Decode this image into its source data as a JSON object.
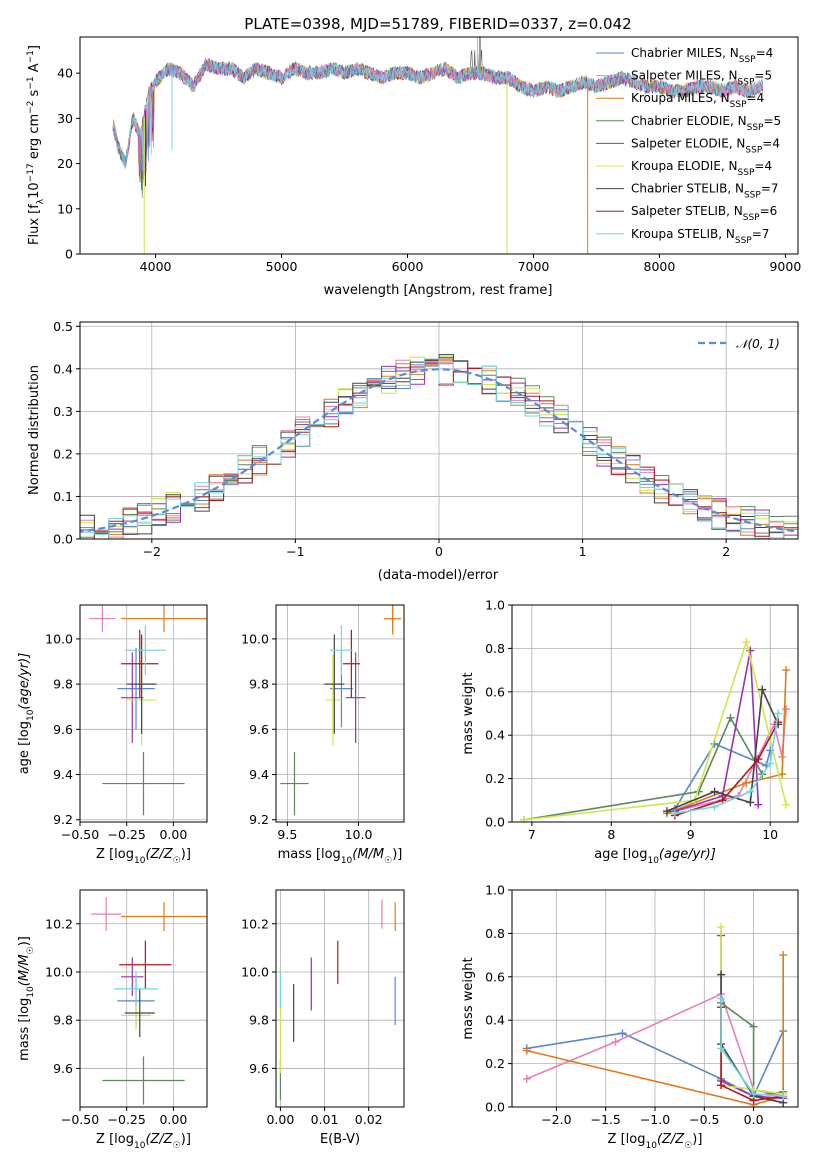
{
  "page_title": "PLATE=0398, MJD=51789, FIBERID=0337, z=0.042",
  "colors": {
    "Chabrier MILES": "#5b86c9",
    "Salpeter MILES": "#e77fb8",
    "Kroupa MILES": "#e07b1a",
    "Chabrier ELODIE": "#5a8a5a",
    "Salpeter ELODIE": "#9a2fb0",
    "Kroupa ELODIE": "#cde84a",
    "Chabrier STELIB": "#444444",
    "Salpeter STELIB": "#b3161e",
    "Kroupa STELIB": "#6fd6e2",
    "normal": "#5b8bd6"
  },
  "models": [
    {
      "key": "Chabrier MILES",
      "label": "Chabrier MILES, N",
      "sub": "SSP",
      "suffix": "=4"
    },
    {
      "key": "Salpeter MILES",
      "label": "Salpeter MILES, N",
      "sub": "SSP",
      "suffix": "=5"
    },
    {
      "key": "Kroupa MILES",
      "label": "Kroupa MILES, N",
      "sub": "SSP",
      "suffix": "=4"
    },
    {
      "key": "Chabrier ELODIE",
      "label": "Chabrier ELODIE, N",
      "sub": "SSP",
      "suffix": "=5"
    },
    {
      "key": "Salpeter ELODIE",
      "label": "Salpeter ELODIE, N",
      "sub": "SSP",
      "suffix": "=4"
    },
    {
      "key": "Kroupa ELODIE",
      "label": "Kroupa ELODIE, N",
      "sub": "SSP",
      "suffix": "=4"
    },
    {
      "key": "Chabrier STELIB",
      "label": "Chabrier STELIB, N",
      "sub": "SSP",
      "suffix": "=7"
    },
    {
      "key": "Salpeter STELIB",
      "label": "Salpeter STELIB, N",
      "sub": "SSP",
      "suffix": "=6"
    },
    {
      "key": "Kroupa STELIB",
      "label": "Kroupa STELIB, N",
      "sub": "SSP",
      "suffix": "=7"
    }
  ],
  "chart_data": [
    {
      "id": "spectrum",
      "type": "line",
      "title": "PLATE=0398, MJD=51789, FIBERID=0337, z=0.042",
      "xlabel": "wavelength [Angstrom, rest frame]",
      "ylabel": "Flux [f",
      "ylabel_parts": {
        "a": "Flux [f",
        "b": "λ",
        "c": "10",
        "d": "−17",
        "e": " erg cm",
        "f": "−2",
        "g": " s",
        "h": "−1",
        "i": " A",
        "j": "−1",
        "k": "]"
      },
      "xlim": [
        3400,
        9100
      ],
      "ylim": [
        0,
        48
      ],
      "xticks": [
        4000,
        5000,
        6000,
        7000,
        8000,
        9000
      ],
      "yticks": [
        0,
        10,
        20,
        30,
        40
      ],
      "grid": false,
      "legend_placement": "right",
      "continuum_points": [
        [
          3660,
          29
        ],
        [
          3700,
          24
        ],
        [
          3760,
          20
        ],
        [
          3820,
          30
        ],
        [
          3880,
          26
        ],
        [
          3950,
          36
        ],
        [
          4000,
          38
        ],
        [
          4100,
          41
        ],
        [
          4200,
          40
        ],
        [
          4300,
          37
        ],
        [
          4400,
          42
        ],
        [
          4500,
          41
        ],
        [
          4600,
          41
        ],
        [
          4700,
          39
        ],
        [
          4800,
          41
        ],
        [
          4900,
          40
        ],
        [
          5000,
          39
        ],
        [
          5100,
          41
        ],
        [
          5200,
          40
        ],
        [
          5300,
          40
        ],
        [
          5400,
          41
        ],
        [
          5500,
          40
        ],
        [
          5600,
          41
        ],
        [
          5700,
          40
        ],
        [
          5800,
          39
        ],
        [
          5900,
          40
        ],
        [
          6000,
          40
        ],
        [
          6100,
          39
        ],
        [
          6200,
          40
        ],
        [
          6300,
          41
        ],
        [
          6400,
          39
        ],
        [
          6500,
          40
        ],
        [
          6600,
          40
        ],
        [
          6700,
          39
        ],
        [
          6800,
          39
        ],
        [
          6900,
          37
        ],
        [
          7000,
          36
        ],
        [
          7100,
          37
        ],
        [
          7200,
          36
        ],
        [
          7300,
          37
        ],
        [
          7400,
          38
        ],
        [
          7500,
          37
        ],
        [
          7600,
          38
        ],
        [
          7700,
          39
        ],
        [
          7800,
          38
        ],
        [
          7900,
          37
        ],
        [
          8000,
          37
        ],
        [
          8100,
          36
        ],
        [
          8200,
          36
        ],
        [
          8300,
          37
        ],
        [
          8400,
          37
        ],
        [
          8500,
          36
        ],
        [
          8600,
          37
        ],
        [
          8700,
          36
        ],
        [
          8800,
          37
        ]
      ],
      "features": [
        {
          "series": "Kroupa ELODIE",
          "x": 3910,
          "y": 0
        },
        {
          "series": "Kroupa ELODIE",
          "x": 6790,
          "y": 0
        },
        {
          "series": "Kroupa MILES",
          "x": 7430,
          "y": 0
        },
        {
          "series": "Kroupa STELIB",
          "x": 4130,
          "y": 23
        },
        {
          "series": "Chabrier STELIB",
          "x": 3920,
          "y": 15
        }
      ]
    },
    {
      "id": "residual-histogram",
      "type": "histogram",
      "xlabel": "(data-model)/error",
      "ylabel": "Normed distribution",
      "xlim": [
        -2.5,
        2.5
      ],
      "ylim": [
        0,
        0.51
      ],
      "xticks": [
        -2,
        -1,
        0,
        1,
        2
      ],
      "yticks": [
        0.0,
        0.1,
        0.2,
        0.3,
        0.4,
        0.5
      ],
      "grid": true,
      "legend_label": "𝒩(0, 1)",
      "legend_placement": "top-right",
      "bin_width": 0.1
    },
    {
      "id": "age-vs-Z",
      "type": "errorbar",
      "xlabel": "Z [log10(Z/Z☉)]",
      "xlabel_parts": {
        "a": "Z [log",
        "b": "10",
        "c": "(Z/Z",
        "d": "☉",
        "e": ")]"
      },
      "ylabel_parts": {
        "a": "age  [log",
        "b": "10",
        "c": "(age/yr)]"
      },
      "xlim": [
        -0.5,
        0.18
      ],
      "ylim": [
        9.19,
        10.15
      ],
      "xticks": [
        -0.5,
        -0.25,
        0.0
      ],
      "xtick_labels": [
        "−0.50",
        "−0.25",
        "0.00"
      ],
      "yticks": [
        9.2,
        9.4,
        9.6,
        9.8,
        10.0
      ],
      "grid": true,
      "points": [
        {
          "series": "Chabrier MILES",
          "x": -0.2,
          "y": 9.78,
          "xerr": 0.1,
          "yerr": 0.18
        },
        {
          "series": "Salpeter MILES",
          "x": -0.38,
          "y": 10.09,
          "xerr": 0.07,
          "yerr": 0.06
        },
        {
          "series": "Kroupa MILES",
          "x": -0.05,
          "y": 10.09,
          "xerr": 0.23,
          "yerr": 0.06
        },
        {
          "series": "Chabrier ELODIE",
          "x": -0.16,
          "y": 9.36,
          "xerr": 0.22,
          "yerr": 0.14
        },
        {
          "series": "Salpeter ELODIE",
          "x": -0.22,
          "y": 9.74,
          "xerr": 0.06,
          "yerr": 0.2
        },
        {
          "series": "Kroupa ELODIE",
          "x": -0.17,
          "y": 9.73,
          "xerr": 0.08,
          "yerr": 0.2
        },
        {
          "series": "Chabrier STELIB",
          "x": -0.17,
          "y": 9.8,
          "xerr": 0.08,
          "yerr": 0.22
        },
        {
          "series": "Salpeter STELIB",
          "x": -0.18,
          "y": 9.89,
          "xerr": 0.1,
          "yerr": 0.15
        },
        {
          "series": "Kroupa STELIB",
          "x": -0.15,
          "y": 9.95,
          "xerr": 0.11,
          "yerr": 0.11
        }
      ]
    },
    {
      "id": "age-vs-mass",
      "type": "errorbar",
      "xlabel_parts": {
        "a": "mass [log",
        "b": "10",
        "c": "(M/M",
        "d": "☉",
        "e": ")]"
      },
      "xlim": [
        9.42,
        10.32
      ],
      "ylim": [
        9.19,
        10.15
      ],
      "xticks": [
        9.5,
        10.0
      ],
      "xtick_labels": [
        "9.5",
        "10.0"
      ],
      "yticks": [
        9.2,
        9.4,
        9.6,
        9.8,
        10.0
      ],
      "grid": true,
      "points": [
        {
          "series": "Chabrier MILES",
          "x": 9.88,
          "y": 9.78,
          "xerr": 0.08,
          "yerr": 0.17
        },
        {
          "series": "Salpeter MILES",
          "x": 10.24,
          "y": 10.09,
          "xerr": 0.06,
          "yerr": 0.07
        },
        {
          "series": "Kroupa MILES",
          "x": 10.24,
          "y": 10.09,
          "xerr": 0.06,
          "yerr": 0.07
        },
        {
          "series": "Chabrier ELODIE",
          "x": 9.55,
          "y": 9.36,
          "xerr": 0.1,
          "yerr": 0.14
        },
        {
          "series": "Salpeter ELODIE",
          "x": 9.98,
          "y": 9.74,
          "xerr": 0.07,
          "yerr": 0.2
        },
        {
          "series": "Kroupa ELODIE",
          "x": 9.82,
          "y": 9.73,
          "xerr": 0.05,
          "yerr": 0.2
        },
        {
          "series": "Chabrier STELIB",
          "x": 9.83,
          "y": 9.8,
          "xerr": 0.07,
          "yerr": 0.22
        },
        {
          "series": "Salpeter STELIB",
          "x": 9.95,
          "y": 9.89,
          "xerr": 0.06,
          "yerr": 0.15
        },
        {
          "series": "Kroupa STELIB",
          "x": 9.88,
          "y": 9.95,
          "xerr": 0.08,
          "yerr": 0.11
        }
      ]
    },
    {
      "id": "mass-weight-vs-age",
      "type": "line",
      "xlabel_parts": {
        "a": "age  [log",
        "b": "10",
        "c": "(age/yr)]"
      },
      "ylabel": "mass weight",
      "xlim": [
        6.75,
        10.35
      ],
      "ylim": [
        0,
        1
      ],
      "xticks": [
        7,
        8,
        9,
        10
      ],
      "yticks": [
        0.0,
        0.2,
        0.4,
        0.6,
        0.8,
        1.0
      ],
      "grid": true,
      "series": [
        {
          "name": "Chabrier MILES",
          "x": [
            8.8,
            9.3,
            9.95,
            10.0
          ],
          "y": [
            0.06,
            0.36,
            0.26,
            0.33
          ]
        },
        {
          "name": "Salpeter MILES",
          "x": [
            8.8,
            9.6,
            10.05,
            10.15,
            10.2
          ],
          "y": [
            0.05,
            0.12,
            0.45,
            0.3,
            0.52
          ]
        },
        {
          "name": "Kroupa MILES",
          "x": [
            8.7,
            9.7,
            10.15,
            10.2
          ],
          "y": [
            0.04,
            0.18,
            0.22,
            0.7
          ]
        },
        {
          "name": "Chabrier ELODIE",
          "x": [
            6.9,
            9.1,
            9.5,
            9.9
          ],
          "y": [
            0.01,
            0.14,
            0.48,
            0.22
          ]
        },
        {
          "name": "Salpeter ELODIE",
          "x": [
            8.8,
            9.4,
            9.75,
            9.85
          ],
          "y": [
            0.05,
            0.12,
            0.79,
            0.08
          ]
        },
        {
          "name": "Kroupa ELODIE",
          "x": [
            6.9,
            9.05,
            9.7,
            10.2
          ],
          "y": [
            0.01,
            0.1,
            0.83,
            0.08
          ]
        },
        {
          "name": "Chabrier STELIB",
          "x": [
            8.7,
            9.3,
            9.75,
            9.9,
            10.1
          ],
          "y": [
            0.05,
            0.14,
            0.09,
            0.61,
            0.45
          ]
        },
        {
          "name": "Salpeter STELIB",
          "x": [
            8.8,
            9.4,
            9.85,
            10.1
          ],
          "y": [
            0.03,
            0.1,
            0.29,
            0.46
          ]
        },
        {
          "name": "Kroupa STELIB",
          "x": [
            8.8,
            9.3,
            9.75,
            10.0,
            10.1
          ],
          "y": [
            0.04,
            0.07,
            0.14,
            0.27,
            0.5
          ]
        }
      ]
    },
    {
      "id": "mass-vs-Z",
      "type": "errorbar",
      "xlabel_parts": {
        "a": "Z [log",
        "b": "10",
        "c": "(Z/Z",
        "d": "☉",
        "e": ")]"
      },
      "ylabel_parts": {
        "a": "mass [log",
        "b": "10",
        "c": "(M/M",
        "d": "☉",
        "e": ")]"
      },
      "xlim": [
        -0.5,
        0.18
      ],
      "ylim": [
        9.44,
        10.34
      ],
      "xticks": [
        -0.5,
        -0.25,
        0.0
      ],
      "xtick_labels": [
        "−0.50",
        "−0.25",
        "0.00"
      ],
      "yticks": [
        9.6,
        9.8,
        10.0,
        10.2
      ],
      "grid": true,
      "points": [
        {
          "series": "Chabrier MILES",
          "x": -0.2,
          "y": 9.88,
          "xerr": 0.1,
          "yerr": 0.1
        },
        {
          "series": "Salpeter MILES",
          "x": -0.36,
          "y": 10.24,
          "xerr": 0.08,
          "yerr": 0.07
        },
        {
          "series": "Kroupa MILES",
          "x": -0.05,
          "y": 10.23,
          "xerr": 0.23,
          "yerr": 0.06
        },
        {
          "series": "Chabrier ELODIE",
          "x": -0.16,
          "y": 9.55,
          "xerr": 0.22,
          "yerr": 0.1
        },
        {
          "series": "Salpeter ELODIE",
          "x": -0.22,
          "y": 9.98,
          "xerr": 0.06,
          "yerr": 0.08
        },
        {
          "series": "Kroupa ELODIE",
          "x": -0.2,
          "y": 9.82,
          "xerr": 0.08,
          "yerr": 0.06
        },
        {
          "series": "Chabrier STELIB",
          "x": -0.18,
          "y": 9.83,
          "xerr": 0.08,
          "yerr": 0.1
        },
        {
          "series": "Salpeter STELIB",
          "x": -0.15,
          "y": 10.03,
          "xerr": 0.14,
          "yerr": 0.1
        },
        {
          "series": "Kroupa STELIB",
          "x": -0.2,
          "y": 9.93,
          "xerr": 0.12,
          "yerr": 0.07
        }
      ]
    },
    {
      "id": "mass-vs-ebv",
      "type": "errorbar",
      "xlabel": "E(B-V)",
      "xlim": [
        -0.001,
        0.028
      ],
      "ylim": [
        9.44,
        10.34
      ],
      "xticks": [
        0.0,
        0.01,
        0.02
      ],
      "xtick_labels": [
        "0.00",
        "0.01",
        "0.02"
      ],
      "yticks": [
        9.6,
        9.8,
        10.0,
        10.2
      ],
      "grid": true,
      "points": [
        {
          "series": "Chabrier MILES",
          "x": 0.026,
          "y": 9.88,
          "xerr": 0,
          "yerr": 0.1
        },
        {
          "series": "Salpeter MILES",
          "x": 0.023,
          "y": 10.24,
          "xerr": 0,
          "yerr": 0.06
        },
        {
          "series": "Kroupa MILES",
          "x": 0.026,
          "y": 10.23,
          "xerr": 0,
          "yerr": 0.06
        },
        {
          "series": "Chabrier ELODIE",
          "x": 0.0,
          "y": 9.55,
          "xerr": 0,
          "yerr": 0.08
        },
        {
          "series": "Salpeter ELODIE",
          "x": 0.007,
          "y": 9.95,
          "xerr": 0,
          "yerr": 0.11
        },
        {
          "series": "Kroupa ELODIE",
          "x": 0.0,
          "y": 9.8,
          "xerr": 0,
          "yerr": 0.22
        },
        {
          "series": "Chabrier STELIB",
          "x": 0.003,
          "y": 9.83,
          "xerr": 0,
          "yerr": 0.12
        },
        {
          "series": "Salpeter STELIB",
          "x": 0.013,
          "y": 10.04,
          "xerr": 0,
          "yerr": 0.09
        },
        {
          "series": "Kroupa STELIB",
          "x": 0.0,
          "y": 9.93,
          "xerr": 0,
          "yerr": 0.08
        }
      ]
    },
    {
      "id": "mass-weight-vs-Z",
      "type": "line",
      "xlabel_parts": {
        "a": "Z [log",
        "b": "10",
        "c": "(Z/Z",
        "d": "☉",
        "e": ")]"
      },
      "ylabel": "mass weight",
      "xlim": [
        -2.45,
        0.45
      ],
      "ylim": [
        0,
        1
      ],
      "xticks": [
        -2.0,
        -1.5,
        -1.0,
        -0.5,
        0.0
      ],
      "xtick_labels": [
        "−2.0",
        "−1.5",
        "−1.0",
        "−0.5",
        "0.0"
      ],
      "yticks": [
        0.0,
        0.2,
        0.4,
        0.6,
        0.8,
        1.0
      ],
      "grid": true,
      "series": [
        {
          "name": "Chabrier MILES",
          "x": [
            -2.3,
            -1.33,
            -0.33,
            0.0,
            0.3
          ],
          "y": [
            0.27,
            0.34,
            0.13,
            0.05,
            0.35
          ]
        },
        {
          "name": "Salpeter MILES",
          "x": [
            -2.3,
            -1.4,
            -0.33,
            0.0,
            0.3
          ],
          "y": [
            0.13,
            0.3,
            0.52,
            0.08,
            0.05
          ]
        },
        {
          "name": "Kroupa MILES",
          "x": [
            -2.3,
            0.0,
            0.3,
            0.3
          ],
          "y": [
            0.26,
            0.01,
            0.05,
            0.7
          ]
        },
        {
          "name": "Chabrier ELODIE",
          "x": [
            -0.33,
            0.0,
            0.0,
            0.3
          ],
          "y": [
            0.48,
            0.37,
            0.05,
            0.07
          ]
        },
        {
          "name": "Salpeter ELODIE",
          "x": [
            -0.33,
            -0.33,
            0.0,
            0.3
          ],
          "y": [
            0.79,
            0.12,
            0.05,
            0.04
          ]
        },
        {
          "name": "Kroupa ELODIE",
          "x": [
            -0.33,
            -0.33,
            0.0,
            0.3
          ],
          "y": [
            0.83,
            0.1,
            0.08,
            0.06
          ]
        },
        {
          "name": "Chabrier STELIB",
          "x": [
            -0.33,
            -0.33,
            0.0,
            0.3
          ],
          "y": [
            0.61,
            0.29,
            0.05,
            0.02
          ]
        },
        {
          "name": "Salpeter STELIB",
          "x": [
            -0.33,
            -0.33,
            0.0,
            0.3
          ],
          "y": [
            0.46,
            0.1,
            0.03,
            0.05
          ]
        },
        {
          "name": "Kroupa STELIB",
          "x": [
            -0.33,
            -0.33,
            0.0,
            0.3
          ],
          "y": [
            0.5,
            0.27,
            0.06,
            0.05
          ]
        }
      ]
    }
  ]
}
